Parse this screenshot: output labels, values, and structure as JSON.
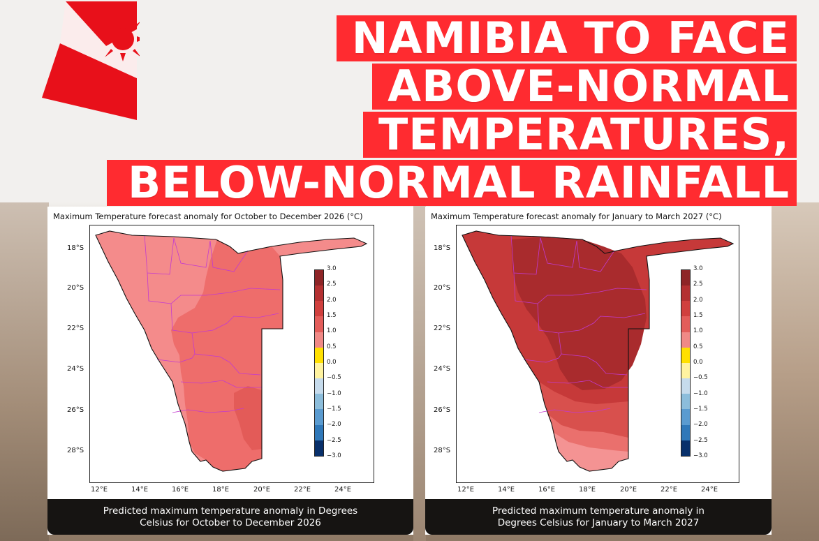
{
  "headline": {
    "lines": [
      "NAMIBIA TO FACE",
      "ABOVE-NORMAL",
      "TEMPERATURES,",
      "BELOW-NORMAL RAINFALL"
    ],
    "bg_color": "#ff2b30",
    "text_color": "#ffffff"
  },
  "logo": {
    "icon": "sun-flag-logo",
    "color": "#e8101a"
  },
  "maps": [
    {
      "title": "Maximum Temperature forecast anomaly for October to December 2026 (°C)",
      "caption_line1": "Predicted maximum temperature anomaly in Degrees",
      "caption_line2": "Celsius for October to December 2026",
      "y_ticks": [
        "18°S",
        "20°S",
        "22°S",
        "24°S",
        "26°S",
        "28°S"
      ],
      "x_ticks": [
        "12°E",
        "14°E",
        "16°E",
        "18°E",
        "20°E",
        "22°E",
        "24°E"
      ],
      "fill_colors": {
        "west": "#f48b8b",
        "east": "#ee6d6b",
        "hot": "#e35b58"
      }
    },
    {
      "title": "Maximum Temperature forecast anomaly for January to March 2027 (°C)",
      "caption_line1": "Predicted maximum temperature anomaly in",
      "caption_line2": "Degrees Celsius for January to March 2027",
      "y_ticks": [
        "18°S",
        "20°S",
        "22°S",
        "24°S",
        "26°S",
        "28°S"
      ],
      "x_ticks": [
        "12°E",
        "14°E",
        "16°E",
        "18°E",
        "20°E",
        "22°E",
        "24°E"
      ],
      "fill_colors": {
        "outer": "#c63939",
        "core": "#a92b2d",
        "south1": "#d8504d",
        "south2": "#ea706d",
        "south3": "#f49393"
      }
    }
  ],
  "colorbar": {
    "labels": [
      "3.0",
      "2.5",
      "2.0",
      "1.5",
      "1.0",
      "0.5",
      "0.0",
      "−0.5",
      "−1.0",
      "−1.5",
      "−2.0",
      "−2.5",
      "−3.0"
    ],
    "colors": [
      "#8e2527",
      "#b43132",
      "#d0403e",
      "#e35d5a",
      "#f08986",
      "#ffe000",
      "#fff3a0",
      "#c6dbec",
      "#8cbddb",
      "#5a9bd0",
      "#2f78b9",
      "#155a9e",
      "#08306b"
    ]
  }
}
